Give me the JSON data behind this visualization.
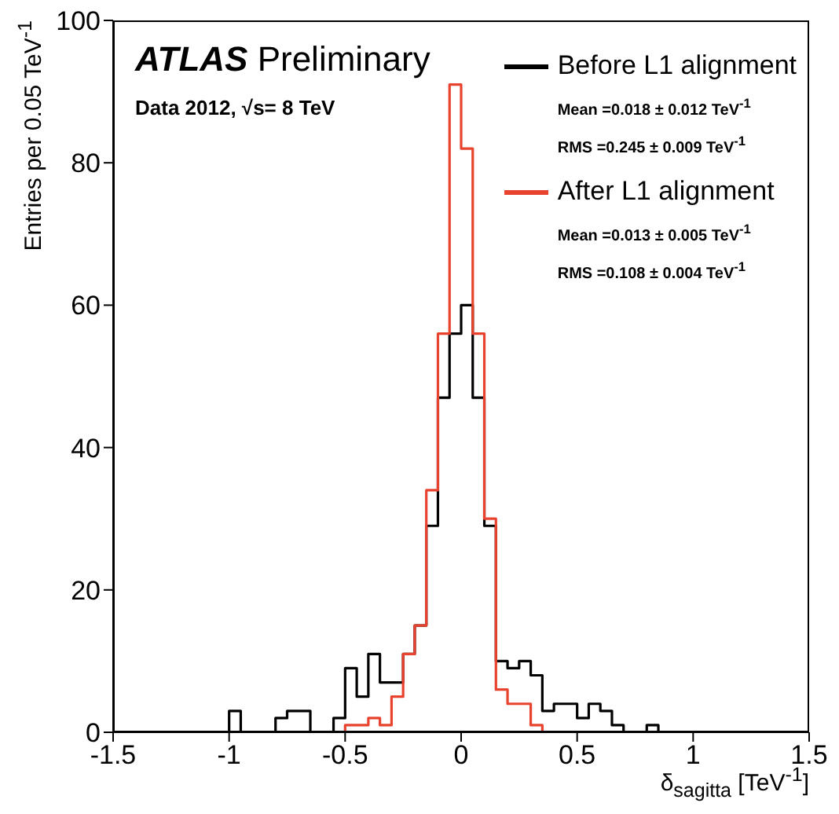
{
  "chart_data": {
    "type": "histogram",
    "title": "ATLAS Preliminary",
    "subtitle": "Data 2012, √s= 8 TeV",
    "xlabel": "δ$_{sagitta}$ [TeV$^{-1}$]",
    "ylabel": "Entries per 0.05 TeV$^{-1}$",
    "bins": [
      -1.5,
      -1.45,
      -1.4,
      -1.35,
      -1.3,
      -1.25,
      -1.2,
      -1.15,
      -1.1,
      -1.05,
      -1.0,
      -0.95,
      -0.9,
      -0.85,
      -0.8,
      -0.75,
      -0.7,
      -0.65,
      -0.6,
      -0.55,
      -0.5,
      -0.45,
      -0.4,
      -0.35,
      -0.3,
      -0.25,
      -0.2,
      -0.15,
      -0.1,
      -0.05,
      0,
      0.05,
      0.1,
      0.15,
      0.2,
      0.25,
      0.3,
      0.35,
      0.4,
      0.45,
      0.5,
      0.55,
      0.6,
      0.65,
      0.7,
      0.75,
      0.8,
      0.85,
      0.9,
      0.95,
      1.0,
      1.05,
      1.1,
      1.15,
      1.2,
      1.25,
      1.3,
      1.35,
      1.4,
      1.45,
      1.5
    ],
    "series": [
      {
        "name": "Before L1 alignment",
        "color": "#000000",
        "values": [
          0,
          0,
          0,
          0,
          0,
          0,
          0,
          0,
          0,
          0,
          3,
          0,
          0,
          0,
          2,
          3,
          3,
          0,
          0,
          2,
          9,
          5,
          11,
          7,
          7,
          11,
          15,
          29,
          47,
          56,
          60,
          47,
          29,
          10,
          9,
          10,
          8,
          3,
          4,
          4,
          2,
          4,
          3,
          1,
          0,
          0,
          1,
          0,
          0,
          0,
          0,
          0,
          0,
          0,
          0,
          0,
          0,
          0,
          0,
          0
        ]
      },
      {
        "name": "After L1 alignment",
        "color": "#e8432f",
        "values": [
          0,
          0,
          0,
          0,
          0,
          0,
          0,
          0,
          0,
          0,
          0,
          0,
          0,
          0,
          0,
          0,
          0,
          0,
          0,
          0,
          1,
          1,
          2,
          1,
          5,
          11,
          15,
          34,
          56,
          91,
          82,
          56,
          30,
          6,
          4,
          4,
          1,
          0,
          0,
          0,
          0,
          0,
          0,
          0,
          0,
          0,
          0,
          0,
          0,
          0,
          0,
          0,
          0,
          0,
          0,
          0,
          0,
          0,
          0,
          0
        ]
      }
    ],
    "annotations": [
      "Mean =0.018 ± 0.012 TeV$^{-1}$",
      "RMS =0.245 ± 0.009 TeV$^{-1}$",
      "Mean =0.013 ± 0.005 TeV$^{-1}$",
      "RMS =0.108 ± 0.004 TeV$^{-1}$"
    ],
    "xlim": [
      -1.5,
      1.5
    ],
    "xticks": [
      -1.5,
      -1,
      -0.5,
      0,
      0.5,
      1,
      1.5
    ],
    "ylim": [
      0,
      100
    ],
    "yticks": [
      0,
      20,
      40,
      60,
      80,
      100
    ],
    "legend": "top right",
    "grid": false,
    "marker": "none",
    "line_style": "solid"
  }
}
